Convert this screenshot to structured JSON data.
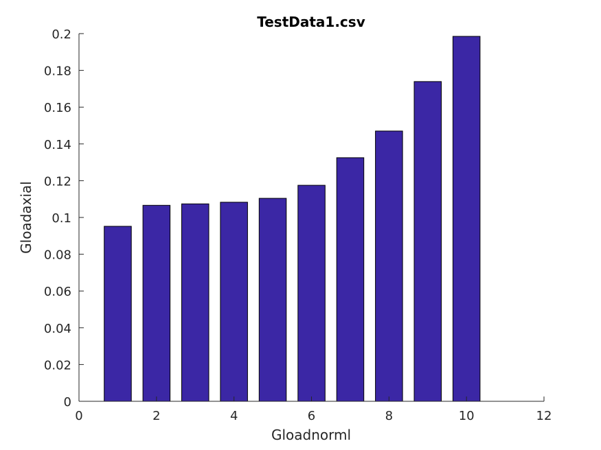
{
  "chart_data": {
    "type": "bar",
    "title": "TestData1.csv",
    "xlabel": "Gloadnorml",
    "ylabel": "Gloadaxial",
    "x": [
      1,
      2,
      3,
      4,
      5,
      6,
      7,
      8,
      9,
      10
    ],
    "values": [
      0.0952,
      0.1066,
      0.1074,
      0.1083,
      0.1104,
      0.1175,
      0.1325,
      0.147,
      0.1739,
      0.1985
    ],
    "xlim": [
      0,
      12
    ],
    "ylim": [
      0,
      0.2
    ],
    "xticks": [
      0,
      2,
      4,
      6,
      8,
      10,
      12
    ],
    "yticks": [
      0,
      0.02,
      0.04,
      0.06,
      0.08,
      0.1,
      0.12,
      0.14,
      0.16,
      0.18,
      0.2
    ],
    "xtick_labels": [
      "0",
      "2",
      "4",
      "6",
      "8",
      "10",
      "12"
    ],
    "ytick_labels": [
      "0",
      "0.02",
      "0.04",
      "0.06",
      "0.08",
      "0.1",
      "0.12",
      "0.14",
      "0.16",
      "0.18",
      "0.2"
    ],
    "bar_color": "#3b27a5",
    "grid": false,
    "legend": "none"
  }
}
